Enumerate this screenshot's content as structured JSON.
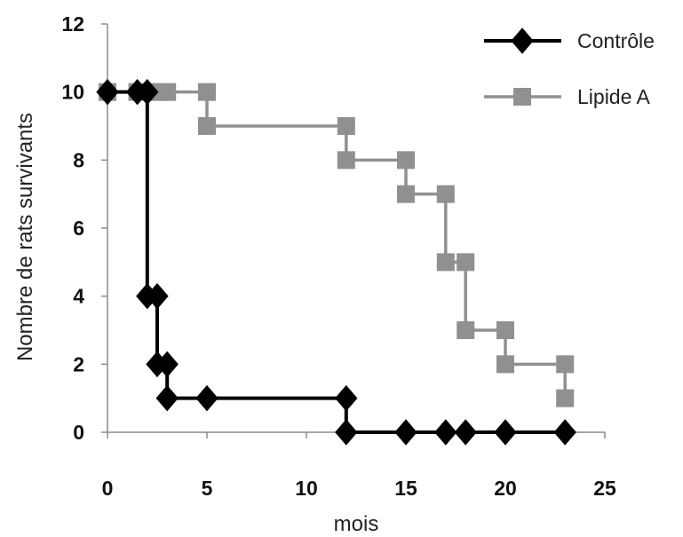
{
  "chart_data": {
    "type": "line",
    "step": true,
    "xlabel": "mois",
    "ylabel": "Nombre de rats survivants",
    "xlim": [
      0,
      25
    ],
    "ylim": [
      0,
      12
    ],
    "xticks": [
      0,
      5,
      10,
      15,
      20,
      25
    ],
    "yticks": [
      0,
      2,
      4,
      6,
      8,
      10,
      12
    ],
    "grid": false,
    "legend_position": "top-right",
    "series": [
      {
        "name": "Contrôle",
        "color": "#000000",
        "marker": "diamond",
        "x": [
          0,
          1.5,
          2,
          2.5,
          3,
          5,
          12,
          15,
          17,
          18,
          20,
          23
        ],
        "y": [
          10,
          10,
          4,
          2,
          1,
          1,
          0,
          0,
          0,
          0,
          0,
          0
        ]
      },
      {
        "name": "Lipide A",
        "color": "#909090",
        "marker": "square",
        "x": [
          0,
          1.5,
          2,
          2.5,
          3,
          5,
          12,
          15,
          17,
          18,
          20,
          23
        ],
        "y": [
          10,
          10,
          10,
          10,
          10,
          9,
          8,
          7,
          5,
          3,
          2,
          1
        ]
      }
    ]
  }
}
